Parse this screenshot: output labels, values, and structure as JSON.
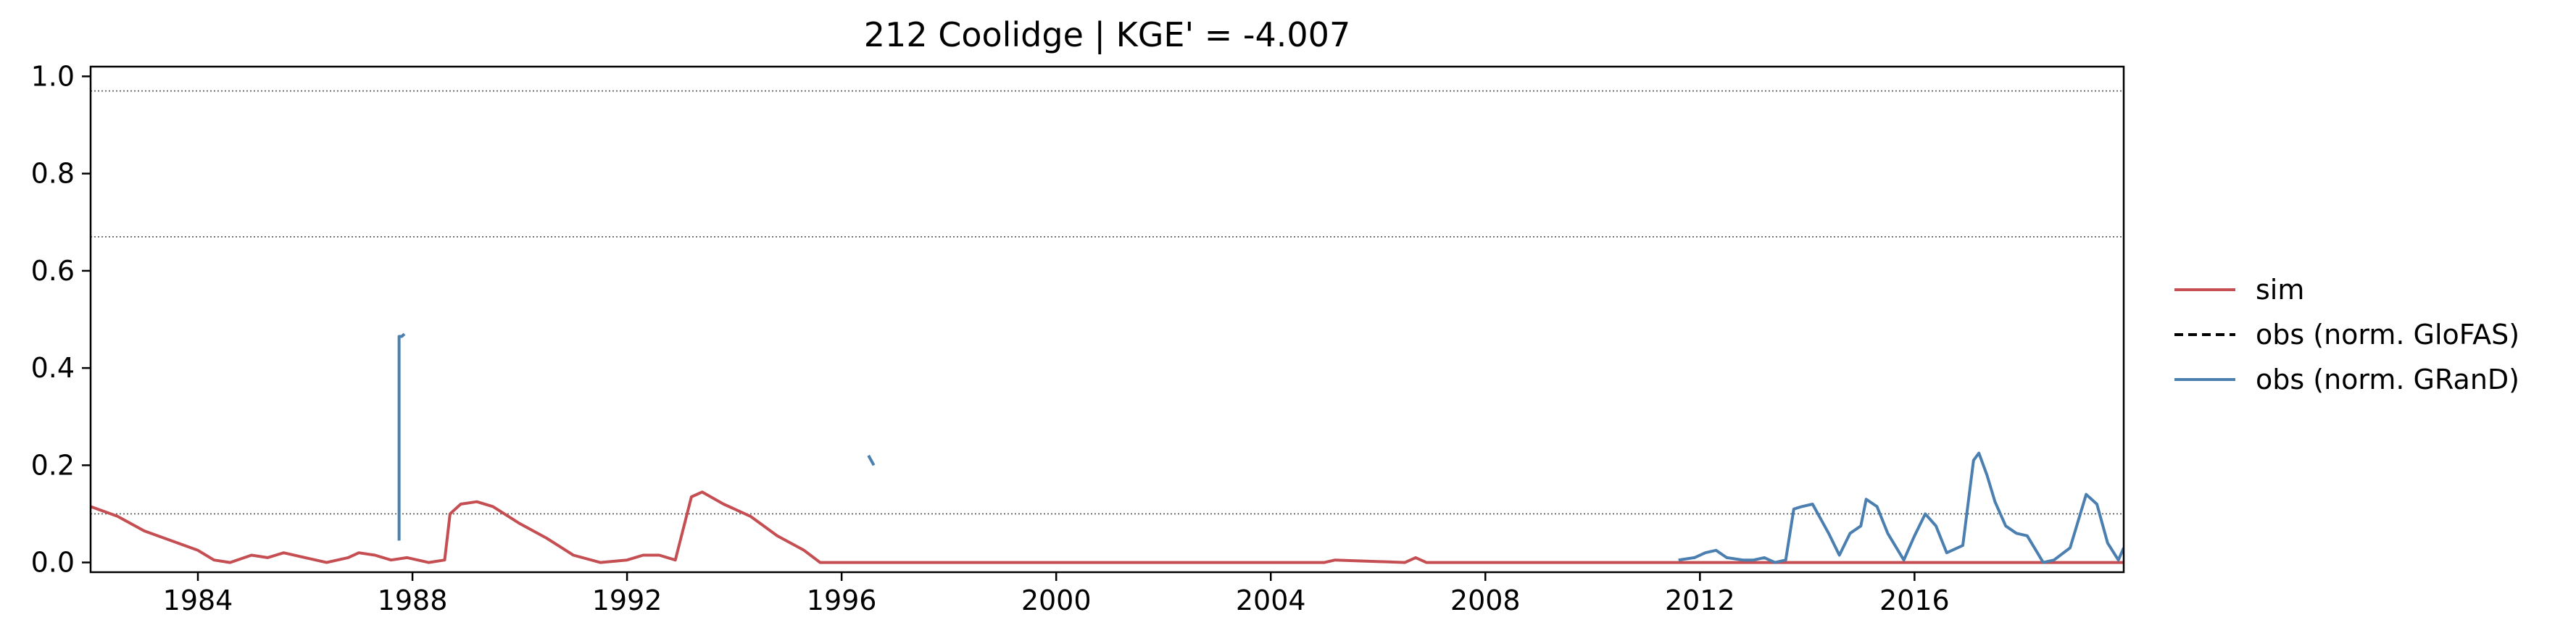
{
  "chart_data": {
    "type": "line",
    "title": "212  Coolidge | KGE' = -4.007",
    "xlabel": "",
    "ylabel": "",
    "xlim": [
      1982.0,
      2019.9
    ],
    "ylim": [
      -0.02,
      1.02
    ],
    "x_ticks": [
      1984,
      1988,
      1992,
      1996,
      2000,
      2004,
      2008,
      2012,
      2016
    ],
    "x_tick_labels": [
      "1984",
      "1988",
      "1992",
      "1996",
      "2000",
      "2004",
      "2008",
      "2012",
      "2016"
    ],
    "y_ticks": [
      0.0,
      0.2,
      0.4,
      0.6,
      0.8,
      1.0
    ],
    "y_tick_labels": [
      "0.0",
      "0.2",
      "0.4",
      "0.6",
      "0.8",
      "1.0"
    ],
    "reference_lines": [
      0.97,
      0.67,
      0.1
    ],
    "grid": false,
    "legend_position": "right",
    "legend": [
      "sim",
      "obs (norm. GloFAS)",
      "obs (norm. GRanD)"
    ],
    "series": [
      {
        "name": "sim",
        "color": "#c44e52",
        "style": "solid",
        "x": [
          1982.0,
          1982.5,
          1983.0,
          1983.5,
          1984.0,
          1984.3,
          1984.6,
          1985.0,
          1985.3,
          1985.6,
          1986.0,
          1986.4,
          1986.8,
          1987.0,
          1987.3,
          1987.6,
          1987.9,
          1988.3,
          1988.6,
          1988.7,
          1988.9,
          1989.2,
          1989.5,
          1990.0,
          1990.5,
          1991.0,
          1991.5,
          1992.0,
          1992.3,
          1992.6,
          1992.9,
          1993.2,
          1993.4,
          1993.8,
          1994.3,
          1994.8,
          1995.3,
          1995.6,
          2005.0,
          2005.2,
          2006.5,
          2006.7,
          2006.9,
          2019.9
        ],
        "values": [
          0.115,
          0.095,
          0.065,
          0.045,
          0.025,
          0.005,
          0.0,
          0.015,
          0.01,
          0.02,
          0.01,
          0.0,
          0.01,
          0.02,
          0.015,
          0.005,
          0.01,
          0.0,
          0.005,
          0.1,
          0.12,
          0.125,
          0.115,
          0.08,
          0.05,
          0.015,
          0.0,
          0.005,
          0.015,
          0.015,
          0.005,
          0.135,
          0.145,
          0.12,
          0.095,
          0.055,
          0.025,
          0.0,
          0.0,
          0.005,
          0.0,
          0.01,
          0.0,
          0.0
        ]
      },
      {
        "name": "obs (norm. GloFAS)",
        "color": "#000000",
        "style": "dashed",
        "x": [],
        "values": []
      },
      {
        "name": "obs (norm. GRanD)",
        "color": "#4a7fb0",
        "style": "solid",
        "segments": [
          {
            "x": [
              1987.75,
              1987.75,
              1987.8,
              1987.85
            ],
            "values": [
              0.045,
              0.465,
              0.465,
              0.47
            ]
          },
          {
            "x": [
              1996.5,
              1996.6
            ],
            "values": [
              0.22,
              0.2
            ]
          },
          {
            "x": [
              2011.6,
              2011.9,
              2012.1,
              2012.3,
              2012.5,
              2012.8,
              2013.0,
              2013.2,
              2013.4,
              2013.6,
              2013.75,
              2013.9,
              2014.1,
              2014.4,
              2014.6,
              2014.8,
              2015.0,
              2015.1,
              2015.3,
              2015.5,
              2015.8,
              2016.0,
              2016.2,
              2016.4,
              2016.6,
              2016.9,
              2017.1,
              2017.2,
              2017.35,
              2017.5,
              2017.7,
              2017.9,
              2018.1,
              2018.4,
              2018.6,
              2018.9,
              2019.2,
              2019.4,
              2019.6,
              2019.8,
              2019.9
            ],
            "values": [
              0.005,
              0.01,
              0.02,
              0.025,
              0.01,
              0.005,
              0.005,
              0.01,
              0.0,
              0.005,
              0.11,
              0.115,
              0.12,
              0.06,
              0.015,
              0.06,
              0.075,
              0.13,
              0.115,
              0.06,
              0.005,
              0.055,
              0.1,
              0.075,
              0.02,
              0.035,
              0.21,
              0.225,
              0.18,
              0.125,
              0.075,
              0.06,
              0.055,
              0.0,
              0.005,
              0.03,
              0.14,
              0.12,
              0.04,
              0.005,
              0.03
            ]
          }
        ]
      }
    ]
  }
}
